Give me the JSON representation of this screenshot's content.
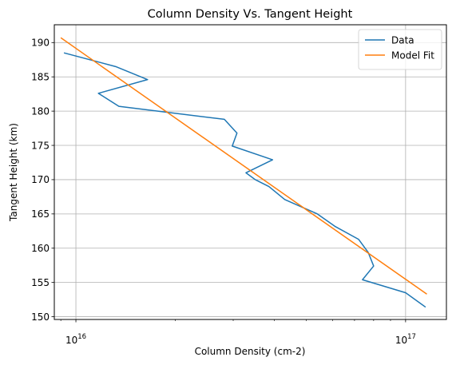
{
  "chart_data": {
    "type": "line",
    "title": "Column Density Vs. Tangent Height",
    "xlabel": "Column Density (cm-2)",
    "ylabel": "Tangent Height (km)",
    "xscale": "log",
    "xlim": [
      8600000000000000.0,
      1.33e+17
    ],
    "ylim": [
      149.6,
      192.6
    ],
    "xticks": [
      {
        "value": 1e+16,
        "base": "10",
        "exp": "16"
      },
      {
        "value": 1e+17,
        "base": "10",
        "exp": "17"
      }
    ],
    "yticks": [
      150,
      155,
      160,
      165,
      170,
      175,
      180,
      185,
      190
    ],
    "grid": true,
    "legend_position": "top-right",
    "series": [
      {
        "name": "Data",
        "color": "#1f77b4",
        "points": [
          [
            9200000000000000.0,
            188.5
          ],
          [
            1.32e+16,
            186.5
          ],
          [
            1.65e+16,
            184.6
          ],
          [
            1.17e+16,
            182.6
          ],
          [
            1.35e+16,
            180.7
          ],
          [
            2.82e+16,
            178.8
          ],
          [
            3.08e+16,
            176.8
          ],
          [
            2.98e+16,
            174.9
          ],
          [
            3.95e+16,
            172.9
          ],
          [
            3.28e+16,
            171.0
          ],
          [
            3.5e+16,
            170.0
          ],
          [
            3.85e+16,
            169.0
          ],
          [
            4.3e+16,
            167.1
          ],
          [
            5.4e+16,
            165.0
          ],
          [
            6.1e+16,
            163.2
          ],
          [
            7.2e+16,
            161.3
          ],
          [
            7.7e+16,
            159.4
          ],
          [
            8e+16,
            157.4
          ],
          [
            7.4e+16,
            155.4
          ],
          [
            1e+17,
            153.5
          ],
          [
            1.15e+17,
            151.4
          ]
        ]
      },
      {
        "name": "Model Fit",
        "color": "#ff7f0e",
        "points": [
          [
            9000000000000000.0,
            190.7
          ],
          [
            1.16e+17,
            153.3
          ]
        ]
      }
    ]
  }
}
